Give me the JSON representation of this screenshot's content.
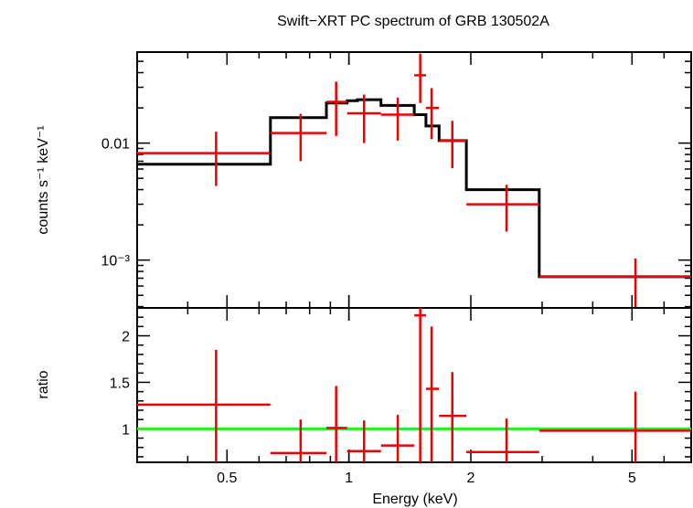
{
  "chart_data": [
    {
      "type": "scatter",
      "panel": "spectrum",
      "title": "Swift−XRT PC spectrum of GRB 130502A",
      "ylabel": "counts s⁻¹ keV⁻¹",
      "xlabel": "",
      "xscale": "log",
      "yscale": "log",
      "xlim": [
        0.3,
        7.0
      ],
      "ylim": [
        0.00039,
        0.06
      ],
      "ytick_labels": [
        {
          "value": 0.01,
          "label": "0.01"
        },
        {
          "value": 0.001,
          "label": "10⁻³"
        }
      ],
      "series": [
        {
          "name": "data",
          "color": "#ee0000",
          "points": [
            {
              "x": 0.47,
              "xlo": 0.3,
              "xhi": 0.64,
              "y": 0.0082,
              "ylo": 0.0043,
              "yhi": 0.0125
            },
            {
              "x": 0.76,
              "xlo": 0.64,
              "xhi": 0.88,
              "y": 0.0122,
              "ylo": 0.007,
              "yhi": 0.0178
            },
            {
              "x": 0.93,
              "xlo": 0.88,
              "xhi": 0.99,
              "y": 0.0225,
              "ylo": 0.0115,
              "yhi": 0.0335
            },
            {
              "x": 1.09,
              "xlo": 0.99,
              "xhi": 1.2,
              "y": 0.018,
              "ylo": 0.01,
              "yhi": 0.026
            },
            {
              "x": 1.32,
              "xlo": 1.2,
              "xhi": 1.45,
              "y": 0.0175,
              "ylo": 0.0105,
              "yhi": 0.0245
            },
            {
              "x": 1.5,
              "xlo": 1.45,
              "xhi": 1.55,
              "y": 0.038,
              "ylo": 0.022,
              "yhi": 0.058
            },
            {
              "x": 1.6,
              "xlo": 1.55,
              "xhi": 1.67,
              "y": 0.02,
              "ylo": 0.0108,
              "yhi": 0.0295
            },
            {
              "x": 1.8,
              "xlo": 1.67,
              "xhi": 1.95,
              "y": 0.0105,
              "ylo": 0.0061,
              "yhi": 0.0155
            },
            {
              "x": 2.45,
              "xlo": 1.95,
              "xhi": 2.95,
              "y": 0.003,
              "ylo": 0.00175,
              "yhi": 0.0044
            },
            {
              "x": 5.1,
              "xlo": 2.95,
              "xhi": 7.0,
              "y": 0.00072,
              "ylo": 0.00039,
              "yhi": 0.00103
            }
          ]
        },
        {
          "name": "model",
          "color": "#000000",
          "step_edges": [
            0.3,
            0.64,
            0.88,
            0.99,
            1.05,
            1.2,
            1.45,
            1.55,
            1.67,
            1.95,
            2.95,
            7.0
          ],
          "step_values": [
            0.0066,
            0.0165,
            0.022,
            0.023,
            0.0235,
            0.021,
            0.0175,
            0.014,
            0.0105,
            0.004,
            0.00072
          ]
        }
      ]
    },
    {
      "type": "scatter",
      "panel": "ratio",
      "ylabel": "ratio",
      "xlabel": "Energy (keV)",
      "xscale": "log",
      "yscale": "linear",
      "xlim": [
        0.3,
        7.0
      ],
      "ylim": [
        0.64,
        2.3
      ],
      "xtick_labels": [
        {
          "value": 0.5,
          "label": "0.5"
        },
        {
          "value": 1,
          "label": "1"
        },
        {
          "value": 2,
          "label": "2"
        },
        {
          "value": 5,
          "label": "5"
        }
      ],
      "ytick_labels": [
        {
          "value": 1,
          "label": "1"
        },
        {
          "value": 1.5,
          "label": "1.5"
        },
        {
          "value": 2,
          "label": "2"
        }
      ],
      "reference_line": {
        "y": 1,
        "color": "#22ee22"
      },
      "series": [
        {
          "name": "ratio",
          "color": "#ee0000",
          "points": [
            {
              "x": 0.47,
              "xlo": 0.3,
              "xhi": 0.64,
              "y": 1.26,
              "ylo": 0.64,
              "yhi": 1.85
            },
            {
              "x": 0.76,
              "xlo": 0.64,
              "xhi": 0.88,
              "y": 0.74,
              "ylo": 0.64,
              "yhi": 1.1
            },
            {
              "x": 0.93,
              "xlo": 0.88,
              "xhi": 0.99,
              "y": 1.01,
              "ylo": 0.64,
              "yhi": 1.46
            },
            {
              "x": 1.09,
              "xlo": 0.99,
              "xhi": 1.2,
              "y": 0.76,
              "ylo": 0.64,
              "yhi": 1.09
            },
            {
              "x": 1.32,
              "xlo": 1.2,
              "xhi": 1.45,
              "y": 0.82,
              "ylo": 0.64,
              "yhi": 1.15
            },
            {
              "x": 1.5,
              "xlo": 1.45,
              "xhi": 1.55,
              "y": 2.22,
              "ylo": 0.64,
              "yhi": 2.3
            },
            {
              "x": 1.6,
              "xlo": 1.55,
              "xhi": 1.67,
              "y": 1.43,
              "ylo": 0.64,
              "yhi": 2.1
            },
            {
              "x": 1.8,
              "xlo": 1.67,
              "xhi": 1.95,
              "y": 1.14,
              "ylo": 0.64,
              "yhi": 1.61
            },
            {
              "x": 2.45,
              "xlo": 1.95,
              "xhi": 2.95,
              "y": 0.75,
              "ylo": 0.64,
              "yhi": 1.11
            },
            {
              "x": 5.1,
              "xlo": 2.95,
              "xhi": 7.0,
              "y": 0.98,
              "ylo": 0.64,
              "yhi": 1.4
            }
          ]
        }
      ]
    }
  ]
}
